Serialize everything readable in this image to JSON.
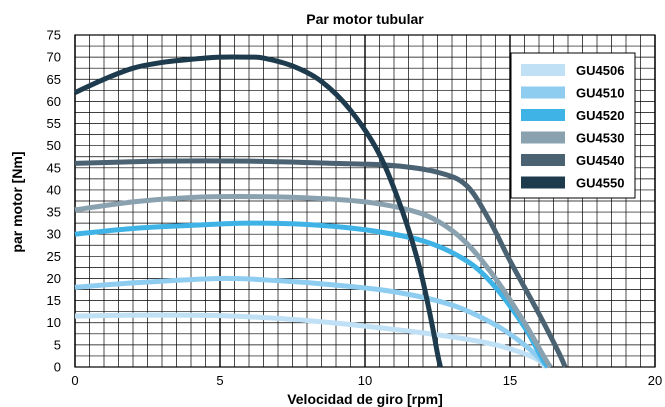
{
  "chart_data": {
    "type": "line",
    "title": "Par motor tubular",
    "xlabel": "Velocidad de giro [rpm]",
    "ylabel": "par motor [Nm]",
    "xlim": [
      0,
      20
    ],
    "ylim": [
      0,
      75
    ],
    "x_ticks": [
      0,
      5,
      10,
      15,
      20
    ],
    "y_ticks": [
      0,
      5,
      10,
      15,
      20,
      25,
      30,
      35,
      40,
      45,
      50,
      55,
      60,
      65,
      70,
      75
    ],
    "grid": true,
    "legend_position": "top-right",
    "series": [
      {
        "name": "GU4506",
        "color": "#bfe0f5",
        "points": [
          [
            0,
            11.5
          ],
          [
            2,
            11.7
          ],
          [
            5,
            11.6
          ],
          [
            8,
            10.5
          ],
          [
            11,
            8.5
          ],
          [
            13,
            6.8
          ],
          [
            14.5,
            5
          ],
          [
            15.5,
            3
          ],
          [
            16,
            1.5
          ],
          [
            16.2,
            0
          ]
        ]
      },
      {
        "name": "GU4510",
        "color": "#8ecdf0",
        "points": [
          [
            0,
            18
          ],
          [
            2,
            19
          ],
          [
            5,
            20
          ],
          [
            7,
            19.5
          ],
          [
            9,
            18.5
          ],
          [
            11,
            17
          ],
          [
            13,
            14
          ],
          [
            14.5,
            9.5
          ],
          [
            15.5,
            5
          ],
          [
            16,
            2
          ],
          [
            16.3,
            0
          ]
        ]
      },
      {
        "name": "GU4520",
        "color": "#3fb3e6",
        "points": [
          [
            0,
            30
          ],
          [
            2,
            31.3
          ],
          [
            4,
            32
          ],
          [
            6,
            32.5
          ],
          [
            8,
            32.2
          ],
          [
            10,
            31
          ],
          [
            12,
            28.5
          ],
          [
            13.5,
            24
          ],
          [
            14.5,
            18
          ],
          [
            15.5,
            9
          ],
          [
            16.1,
            2
          ],
          [
            16.3,
            0
          ]
        ]
      },
      {
        "name": "GU4530",
        "color": "#8aa1af",
        "points": [
          [
            0,
            35.5
          ],
          [
            2,
            37.3
          ],
          [
            4,
            38.3
          ],
          [
            6,
            38.5
          ],
          [
            8,
            38.2
          ],
          [
            10,
            37.3
          ],
          [
            11.5,
            35.5
          ],
          [
            12.5,
            33
          ],
          [
            13.5,
            28
          ],
          [
            14.5,
            20
          ],
          [
            15.5,
            10
          ],
          [
            16.2,
            2
          ],
          [
            16.4,
            0
          ]
        ]
      },
      {
        "name": "GU4540",
        "color": "#4a6272",
        "points": [
          [
            0,
            46
          ],
          [
            3,
            46.5
          ],
          [
            6,
            46.5
          ],
          [
            9,
            46
          ],
          [
            11,
            45.5
          ],
          [
            12.5,
            44
          ],
          [
            13.5,
            41
          ],
          [
            14.3,
            33
          ],
          [
            15,
            24
          ],
          [
            16,
            12
          ],
          [
            16.7,
            3
          ],
          [
            16.9,
            0
          ]
        ]
      },
      {
        "name": "GU4550",
        "color": "#1d3b4d",
        "points": [
          [
            0,
            62
          ],
          [
            1,
            65
          ],
          [
            2,
            67.5
          ],
          [
            3,
            68.8
          ],
          [
            4,
            69.5
          ],
          [
            5,
            70
          ],
          [
            6,
            70
          ],
          [
            6.5,
            69.8
          ],
          [
            7.5,
            68
          ],
          [
            8.5,
            64.5
          ],
          [
            9.5,
            58
          ],
          [
            10.5,
            48
          ],
          [
            11.3,
            35
          ],
          [
            11.9,
            22
          ],
          [
            12.3,
            10
          ],
          [
            12.5,
            3
          ],
          [
            12.6,
            0
          ]
        ]
      }
    ]
  }
}
